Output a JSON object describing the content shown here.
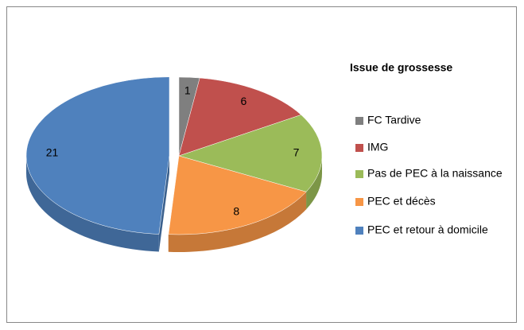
{
  "chart_data": {
    "type": "pie",
    "legend_title": "Issue de grossesse",
    "categories": [
      "FC Tardive",
      "IMG",
      "Pas de PEC à la naissance",
      "PEC et décès",
      "PEC et retour à domicile"
    ],
    "values": [
      1,
      6,
      7,
      8,
      21
    ],
    "colors": [
      "#7f7f7f",
      "#c0504d",
      "#9bbb59",
      "#f79646",
      "#4f81bd"
    ],
    "legend": "right"
  }
}
